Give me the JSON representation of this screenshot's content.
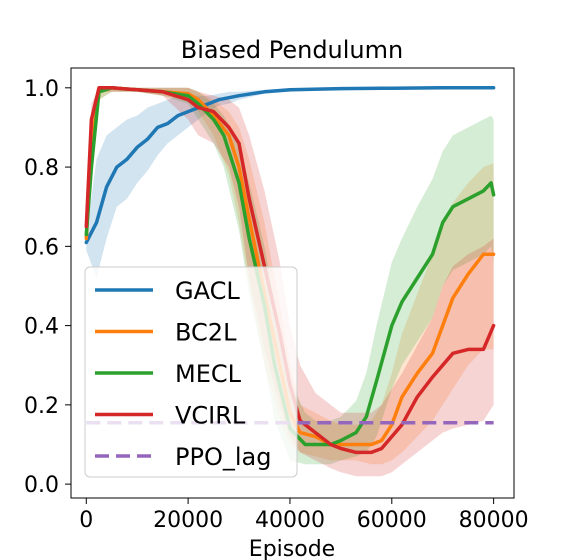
{
  "chart_data": {
    "type": "line",
    "title": "Biased Pendulumn",
    "xlabel": "Episode",
    "ylabel": "",
    "xlim": [
      -3000,
      84000
    ],
    "ylim": [
      -0.035,
      1.05
    ],
    "xticks": [
      0,
      20000,
      40000,
      60000,
      80000
    ],
    "xtick_labels": [
      "0",
      "20000",
      "40000",
      "60000",
      "80000"
    ],
    "yticks": [
      0.0,
      0.2,
      0.4,
      0.6,
      0.8,
      1.0
    ],
    "ytick_labels": [
      "0.0",
      "0.2",
      "0.4",
      "0.6",
      "0.8",
      "1.0"
    ],
    "grid": false,
    "legend_position": "center-left",
    "series": [
      {
        "name": "GACL",
        "color": "#1f77b4",
        "style": "solid",
        "x": [
          0,
          2000,
          4000,
          6000,
          8000,
          10000,
          12000,
          14000,
          16000,
          18000,
          20000,
          22000,
          24000,
          26000,
          28000,
          30000,
          35000,
          40000,
          50000,
          60000,
          70000,
          80000
        ],
        "y": [
          0.61,
          0.66,
          0.75,
          0.8,
          0.82,
          0.85,
          0.87,
          0.9,
          0.91,
          0.93,
          0.94,
          0.95,
          0.96,
          0.97,
          0.975,
          0.98,
          0.99,
          0.995,
          0.998,
          0.999,
          1.0,
          1.0
        ],
        "upper": [
          0.63,
          0.82,
          0.88,
          0.9,
          0.92,
          0.93,
          0.95,
          0.96,
          0.97,
          0.98,
          0.98,
          0.98,
          0.98,
          0.985,
          0.99,
          0.99,
          0.995,
          0.998,
          1.0,
          1.0,
          1.0,
          1.0
        ],
        "lower": [
          0.59,
          0.52,
          0.62,
          0.7,
          0.72,
          0.76,
          0.79,
          0.83,
          0.86,
          0.88,
          0.9,
          0.92,
          0.94,
          0.955,
          0.96,
          0.97,
          0.985,
          0.99,
          0.996,
          0.998,
          0.999,
          0.999
        ]
      },
      {
        "name": "BC2L",
        "color": "#ff7f0e",
        "style": "solid",
        "x": [
          0,
          1000,
          2500,
          5000,
          10000,
          15000,
          20000,
          22000,
          25000,
          28000,
          30000,
          32000,
          35000,
          38000,
          40000,
          42000,
          45000,
          48000,
          50000,
          53000,
          56000,
          58000,
          60000,
          62000,
          65000,
          68000,
          70000,
          72000,
          75000,
          78000,
          80000
        ],
        "y": [
          0.62,
          0.85,
          0.99,
          1.0,
          0.995,
          0.99,
          0.985,
          0.97,
          0.93,
          0.88,
          0.8,
          0.67,
          0.48,
          0.3,
          0.18,
          0.13,
          0.12,
          0.1,
          0.1,
          0.1,
          0.1,
          0.11,
          0.15,
          0.22,
          0.28,
          0.33,
          0.4,
          0.47,
          0.53,
          0.58,
          0.58
        ],
        "upper": [
          0.64,
          0.9,
          1.0,
          1.0,
          1.0,
          1.0,
          1.0,
          0.99,
          0.97,
          0.94,
          0.9,
          0.82,
          0.66,
          0.45,
          0.3,
          0.2,
          0.18,
          0.16,
          0.15,
          0.15,
          0.16,
          0.2,
          0.28,
          0.38,
          0.48,
          0.58,
          0.65,
          0.71,
          0.76,
          0.8,
          0.81
        ],
        "lower": [
          0.6,
          0.8,
          0.97,
          0.99,
          0.99,
          0.98,
          0.97,
          0.94,
          0.88,
          0.78,
          0.66,
          0.5,
          0.3,
          0.16,
          0.1,
          0.08,
          0.07,
          0.06,
          0.06,
          0.06,
          0.05,
          0.05,
          0.06,
          0.08,
          0.12,
          0.16,
          0.2,
          0.24,
          0.3,
          0.34,
          0.34
        ]
      },
      {
        "name": "MECL",
        "color": "#2ca02c",
        "style": "solid",
        "x": [
          0,
          1000,
          2500,
          5000,
          10000,
          15000,
          20000,
          22000,
          25000,
          27000,
          30000,
          32000,
          35000,
          37000,
          40000,
          43000,
          45000,
          48000,
          50000,
          53000,
          55000,
          57000,
          60000,
          62000,
          65000,
          68000,
          70000,
          72000,
          75000,
          78000,
          79500,
          80000
        ],
        "y": [
          0.63,
          0.8,
          0.99,
          1.0,
          0.995,
          0.99,
          0.98,
          0.96,
          0.92,
          0.88,
          0.76,
          0.62,
          0.45,
          0.3,
          0.14,
          0.1,
          0.1,
          0.1,
          0.11,
          0.13,
          0.17,
          0.26,
          0.4,
          0.46,
          0.52,
          0.58,
          0.66,
          0.7,
          0.72,
          0.74,
          0.76,
          0.73
        ],
        "upper": [
          0.65,
          0.86,
          1.0,
          1.0,
          1.0,
          1.0,
          1.0,
          0.99,
          0.96,
          0.93,
          0.86,
          0.76,
          0.6,
          0.46,
          0.26,
          0.18,
          0.16,
          0.16,
          0.17,
          0.21,
          0.28,
          0.4,
          0.56,
          0.62,
          0.7,
          0.77,
          0.84,
          0.88,
          0.9,
          0.92,
          0.93,
          0.92
        ],
        "lower": [
          0.61,
          0.74,
          0.97,
          0.99,
          0.99,
          0.98,
          0.96,
          0.92,
          0.86,
          0.8,
          0.64,
          0.48,
          0.3,
          0.16,
          0.06,
          0.05,
          0.05,
          0.05,
          0.06,
          0.07,
          0.08,
          0.12,
          0.24,
          0.3,
          0.36,
          0.42,
          0.5,
          0.54,
          0.56,
          0.58,
          0.6,
          0.56
        ]
      },
      {
        "name": "VCIRL",
        "color": "#d62728",
        "style": "solid",
        "x": [
          0,
          1000,
          2500,
          5000,
          10000,
          15000,
          20000,
          22000,
          25000,
          28000,
          30000,
          32000,
          35000,
          38000,
          40000,
          42000,
          45000,
          48000,
          50000,
          53000,
          56000,
          58000,
          60000,
          62000,
          65000,
          68000,
          70000,
          72000,
          75000,
          78000,
          80000
        ],
        "y": [
          0.65,
          0.92,
          1.0,
          1.0,
          0.995,
          0.99,
          0.97,
          0.95,
          0.94,
          0.9,
          0.86,
          0.72,
          0.55,
          0.38,
          0.25,
          0.16,
          0.13,
          0.1,
          0.09,
          0.08,
          0.08,
          0.09,
          0.12,
          0.15,
          0.22,
          0.27,
          0.3,
          0.33,
          0.34,
          0.34,
          0.4
        ],
        "upper": [
          0.67,
          0.96,
          1.0,
          1.0,
          1.0,
          1.0,
          1.0,
          0.99,
          0.98,
          0.97,
          0.95,
          0.88,
          0.74,
          0.56,
          0.4,
          0.3,
          0.23,
          0.2,
          0.18,
          0.18,
          0.18,
          0.2,
          0.24,
          0.28,
          0.35,
          0.42,
          0.5,
          0.55,
          0.58,
          0.6,
          0.62
        ],
        "lower": [
          0.63,
          0.88,
          0.99,
          0.99,
          0.99,
          0.98,
          0.92,
          0.88,
          0.86,
          0.8,
          0.7,
          0.52,
          0.34,
          0.2,
          0.12,
          0.08,
          0.06,
          0.04,
          0.03,
          0.02,
          0.02,
          0.02,
          0.03,
          0.05,
          0.08,
          0.11,
          0.13,
          0.14,
          0.15,
          0.16,
          0.2
        ]
      },
      {
        "name": "PPO_lag",
        "color": "#9467bd",
        "style": "dashed",
        "x": [
          0,
          80000
        ],
        "y": [
          0.155,
          0.155
        ]
      }
    ]
  }
}
